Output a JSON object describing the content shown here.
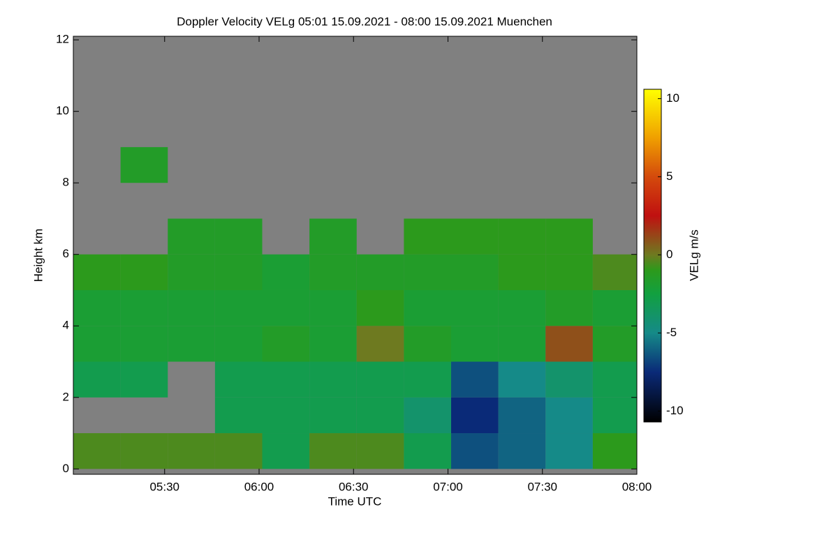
{
  "chart_data": {
    "type": "heatmap",
    "title": "Doppler Velocity VELg   05:01 15.09.2021 - 08:00 15.09.2021 Muenchen",
    "x_label": "Time UTC",
    "y_label": "Height km",
    "colorbar_label": "VELg m/s",
    "xlim": [
      301,
      480
    ],
    "xticks": [
      {
        "value": 330,
        "label": "05:30"
      },
      {
        "value": 360,
        "label": "06:00"
      },
      {
        "value": 390,
        "label": "06:30"
      },
      {
        "value": 420,
        "label": "07:00"
      },
      {
        "value": 450,
        "label": "07:30"
      },
      {
        "value": 480,
        "label": "08:00"
      }
    ],
    "ylim": [
      -0.15,
      12.1
    ],
    "yticks": [
      0,
      2,
      4,
      6,
      8,
      10,
      12
    ],
    "zlim": [
      -10.7,
      10.6
    ],
    "zticks": [
      -10,
      -5,
      0,
      5,
      10
    ],
    "colormap": [
      [
        -10.7,
        "#000000"
      ],
      [
        -7.5,
        "#0a2a78"
      ],
      [
        -5,
        "#158a88"
      ],
      [
        -2.5,
        "#12a040"
      ],
      [
        -1,
        "#2c9a1c"
      ],
      [
        0,
        "#6e7a20"
      ],
      [
        2.5,
        "#c01010"
      ],
      [
        5,
        "#d44a0c"
      ],
      [
        7.5,
        "#f0a000"
      ],
      [
        10.6,
        "#ffff00"
      ]
    ],
    "no_data_color": "#808080",
    "x_bins": [
      301,
      316,
      331,
      346,
      361,
      376,
      391,
      406,
      421,
      436,
      451,
      466,
      480
    ],
    "y_bins": [
      0,
      1,
      2,
      3,
      4,
      5,
      6,
      7,
      8,
      9,
      10,
      11,
      12
    ],
    "z": [
      [
        -0.5,
        -0.5,
        -0.5,
        -0.5,
        -3,
        -0.5,
        -0.5,
        -3,
        -6.5,
        -6,
        -5,
        -1
      ],
      [
        null,
        null,
        null,
        -3,
        -3,
        -3,
        -3,
        -4,
        -7.5,
        -6,
        -5,
        -3
      ],
      [
        -3,
        -3,
        null,
        -3,
        -3,
        -3,
        -3,
        -3,
        -6.5,
        -5,
        -4,
        -3
      ],
      [
        -2,
        -2,
        -2,
        -2,
        -1.5,
        -2,
        0,
        -1.5,
        -2,
        -2,
        1,
        -1.5
      ],
      [
        -2,
        -2,
        -2,
        -2,
        -2,
        -2,
        -1,
        -2,
        -2,
        -2,
        -1.5,
        -2
      ],
      [
        -1,
        -1,
        -1.5,
        -1.5,
        -2,
        -1.5,
        -1.5,
        -1.5,
        -1.5,
        -1,
        -1,
        -0.5
      ],
      [
        null,
        null,
        -1.5,
        -1.5,
        null,
        -1.5,
        null,
        -1,
        -1,
        -1,
        -1,
        null
      ],
      [
        null,
        null,
        null,
        null,
        null,
        null,
        null,
        null,
        null,
        null,
        null,
        null
      ],
      [
        null,
        -1.5,
        null,
        null,
        null,
        null,
        null,
        null,
        null,
        null,
        null,
        null
      ],
      [
        null,
        null,
        null,
        null,
        null,
        null,
        null,
        null,
        null,
        null,
        null,
        null
      ],
      [
        null,
        null,
        null,
        null,
        null,
        null,
        null,
        null,
        null,
        null,
        null,
        null
      ],
      [
        null,
        null,
        null,
        null,
        null,
        null,
        null,
        null,
        null,
        null,
        null,
        null
      ]
    ]
  }
}
